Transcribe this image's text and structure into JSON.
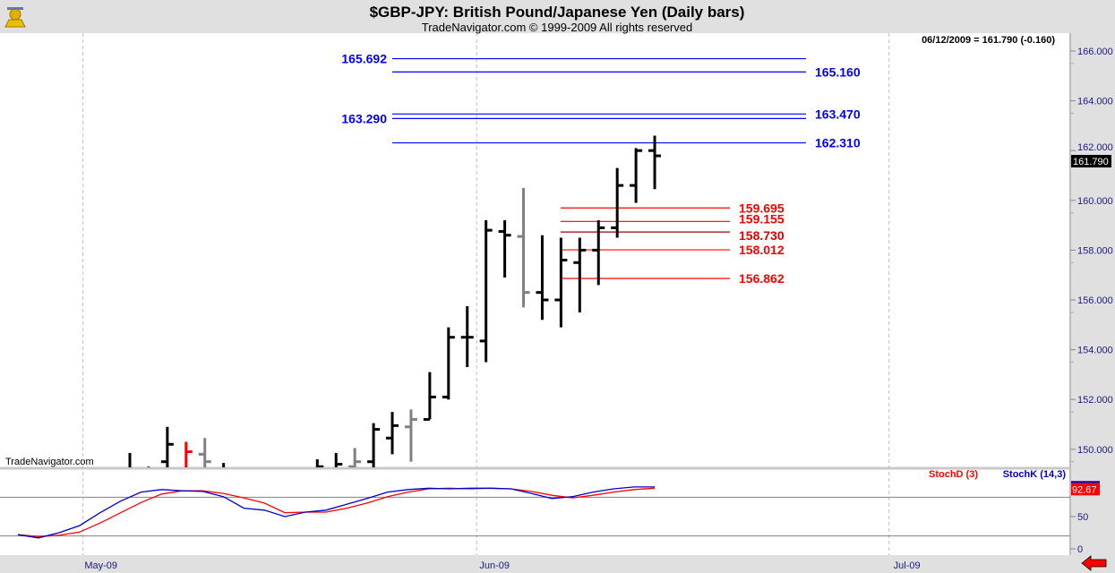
{
  "header": {
    "title": "$GBP-JPY:  British Pound/Japanese Yen  (Daily bars)",
    "subtitle": "TradeNavigator.com © 1999-2009 All rights reserved",
    "last_quote": "06/12/2009 = 161.790 (-0.160)",
    "watermark": "TradeNavigator.com",
    "logo": "trade-navigator-logo"
  },
  "chart_data": [
    {
      "type": "ohlc",
      "title": "$GBP-JPY Daily bars",
      "ylim": [
        148.8,
        166.5
      ],
      "yticks": [
        "166.000",
        "164.000",
        "162.000",
        "160.000",
        "158.000",
        "156.000",
        "154.000",
        "152.000",
        "150.000"
      ],
      "ytick_values": [
        166,
        164,
        162,
        160,
        158,
        156,
        154,
        152,
        150
      ],
      "last_price_label": "161.790",
      "last_price": 161.79,
      "xticks": [
        "May-09",
        "Jun-09",
        "Jul-09"
      ],
      "xtick_days": [
        -2.5,
        18.5,
        40.5
      ],
      "colors": {
        "up": "#000000",
        "grey": "#808080",
        "red": "#ff0000"
      },
      "bars": [
        {
          "day": 0,
          "o": 149.0,
          "h": 149.85,
          "l": 148.5,
          "c": 149.2,
          "color": "up"
        },
        {
          "day": 1,
          "o": 149.2,
          "h": 149.3,
          "l": 148.6,
          "c": 149.0,
          "color": "up"
        },
        {
          "day": 2,
          "o": 149.5,
          "h": 150.9,
          "l": 148.6,
          "c": 150.2,
          "color": "up"
        },
        {
          "day": 3,
          "o": 149.2,
          "h": 150.3,
          "l": 148.6,
          "c": 149.9,
          "color": "red"
        },
        {
          "day": 4,
          "o": 149.8,
          "h": 150.45,
          "l": 148.6,
          "c": 149.5,
          "color": "grey"
        },
        {
          "day": 5,
          "o": 149.2,
          "h": 149.45,
          "l": 148.6,
          "c": 149.0,
          "color": "up"
        },
        {
          "day": 10,
          "o": 149.0,
          "h": 149.6,
          "l": 148.6,
          "c": 149.3,
          "color": "up"
        },
        {
          "day": 11,
          "o": 149.2,
          "h": 149.85,
          "l": 148.6,
          "c": 149.4,
          "color": "up"
        },
        {
          "day": 12,
          "o": 149.3,
          "h": 150.05,
          "l": 148.6,
          "c": 149.5,
          "color": "grey"
        },
        {
          "day": 13,
          "o": 149.5,
          "h": 151.05,
          "l": 148.6,
          "c": 150.8,
          "color": "up"
        },
        {
          "day": 14,
          "o": 150.45,
          "h": 151.5,
          "l": 149.8,
          "c": 150.95,
          "color": "up"
        },
        {
          "day": 15,
          "o": 150.9,
          "h": 151.6,
          "l": 149.5,
          "c": 151.2,
          "color": "grey"
        },
        {
          "day": 16,
          "o": 151.2,
          "h": 153.1,
          "l": 151.2,
          "c": 152.1,
          "color": "up"
        },
        {
          "day": 17,
          "o": 152.1,
          "h": 154.9,
          "l": 152.0,
          "c": 154.5,
          "color": "up"
        },
        {
          "day": 18,
          "o": 154.5,
          "h": 155.75,
          "l": 153.3,
          "c": 154.5,
          "color": "up"
        },
        {
          "day": 19,
          "o": 154.35,
          "h": 159.2,
          "l": 153.5,
          "c": 158.8,
          "color": "up"
        },
        {
          "day": 20,
          "o": 158.75,
          "h": 159.2,
          "l": 156.9,
          "c": 158.6,
          "color": "up"
        },
        {
          "day": 21,
          "o": 158.55,
          "h": 160.5,
          "l": 155.7,
          "c": 156.3,
          "color": "grey"
        },
        {
          "day": 22,
          "o": 156.3,
          "h": 158.6,
          "l": 155.2,
          "c": 156.0,
          "color": "up"
        },
        {
          "day": 23,
          "o": 156.0,
          "h": 158.5,
          "l": 154.9,
          "c": 157.6,
          "color": "up"
        },
        {
          "day": 24,
          "o": 157.5,
          "h": 158.5,
          "l": 155.5,
          "c": 158.0,
          "color": "up"
        },
        {
          "day": 25,
          "o": 158.0,
          "h": 159.2,
          "l": 156.6,
          "c": 158.9,
          "color": "up"
        },
        {
          "day": 26,
          "o": 158.9,
          "h": 161.3,
          "l": 158.5,
          "c": 160.6,
          "color": "up"
        },
        {
          "day": 27,
          "o": 160.6,
          "h": 162.1,
          "l": 159.9,
          "c": 162.0,
          "color": "up"
        },
        {
          "day": 28,
          "o": 162.0,
          "h": 162.6,
          "l": 160.45,
          "c": 161.79,
          "color": "up"
        }
      ],
      "levels": [
        {
          "value": 165.692,
          "label": "165.692",
          "color": "#0000ff",
          "label_side": "left",
          "from_day": 14,
          "to_day": 37
        },
        {
          "value": 165.16,
          "label": "165.160",
          "color": "#0000ff",
          "label_side": "right",
          "from_day": 14,
          "to_day": 37
        },
        {
          "value": 163.47,
          "label": "163.470",
          "color": "#0000ff",
          "label_side": "right",
          "from_day": 14,
          "to_day": 37
        },
        {
          "value": 163.29,
          "label": "163.290",
          "color": "#0000ff",
          "label_side": "left",
          "from_day": 14,
          "to_day": 37
        },
        {
          "value": 162.31,
          "label": "162.310",
          "color": "#0000ff",
          "label_side": "right",
          "from_day": 14,
          "to_day": 37
        },
        {
          "value": 159.695,
          "label": "159.695",
          "color": "#ff0000",
          "label_side": "right",
          "from_day": 23,
          "to_day": 32
        },
        {
          "value": 159.155,
          "label": "159.155",
          "color": "#ff0000",
          "label_side": "right",
          "from_day": 23,
          "to_day": 32
        },
        {
          "value": 158.73,
          "label": "158.730",
          "color": "#a00000",
          "label_side": "right",
          "from_day": 23,
          "to_day": 32
        },
        {
          "value": 158.012,
          "label": "158.012",
          "color": "#ff0000",
          "label_side": "right",
          "from_day": 23,
          "to_day": 32
        },
        {
          "value": 156.862,
          "label": "156.862",
          "color": "#ff0000",
          "label_side": "right",
          "from_day": 23,
          "to_day": 32
        }
      ]
    },
    {
      "type": "line",
      "title": "Stochastics",
      "ylim": [
        0,
        100
      ],
      "yticks": [
        "50",
        "0"
      ],
      "ytick_values": [
        50,
        0
      ],
      "reference_lines": [
        80,
        20
      ],
      "last_value_label": "92.67",
      "series": [
        {
          "name": "StochD (3)",
          "color": "#ff0000",
          "values": [
            22,
            19,
            21,
            26,
            40,
            56,
            72,
            85,
            90,
            90,
            86,
            79,
            71,
            56,
            57,
            57,
            63,
            71,
            81,
            88,
            93,
            94,
            93,
            94,
            93,
            89,
            83,
            79,
            83,
            88,
            92,
            94
          ]
        },
        {
          "name": "StochK (14,3)",
          "color": "#0000cc",
          "values": [
            22,
            17,
            25,
            36,
            56,
            74,
            88,
            92,
            90,
            89,
            81,
            63,
            60,
            50,
            57,
            60,
            69,
            78,
            88,
            92,
            94,
            93,
            94,
            94,
            93,
            86,
            78,
            81,
            88,
            93,
            96,
            96
          ]
        }
      ]
    }
  ]
}
